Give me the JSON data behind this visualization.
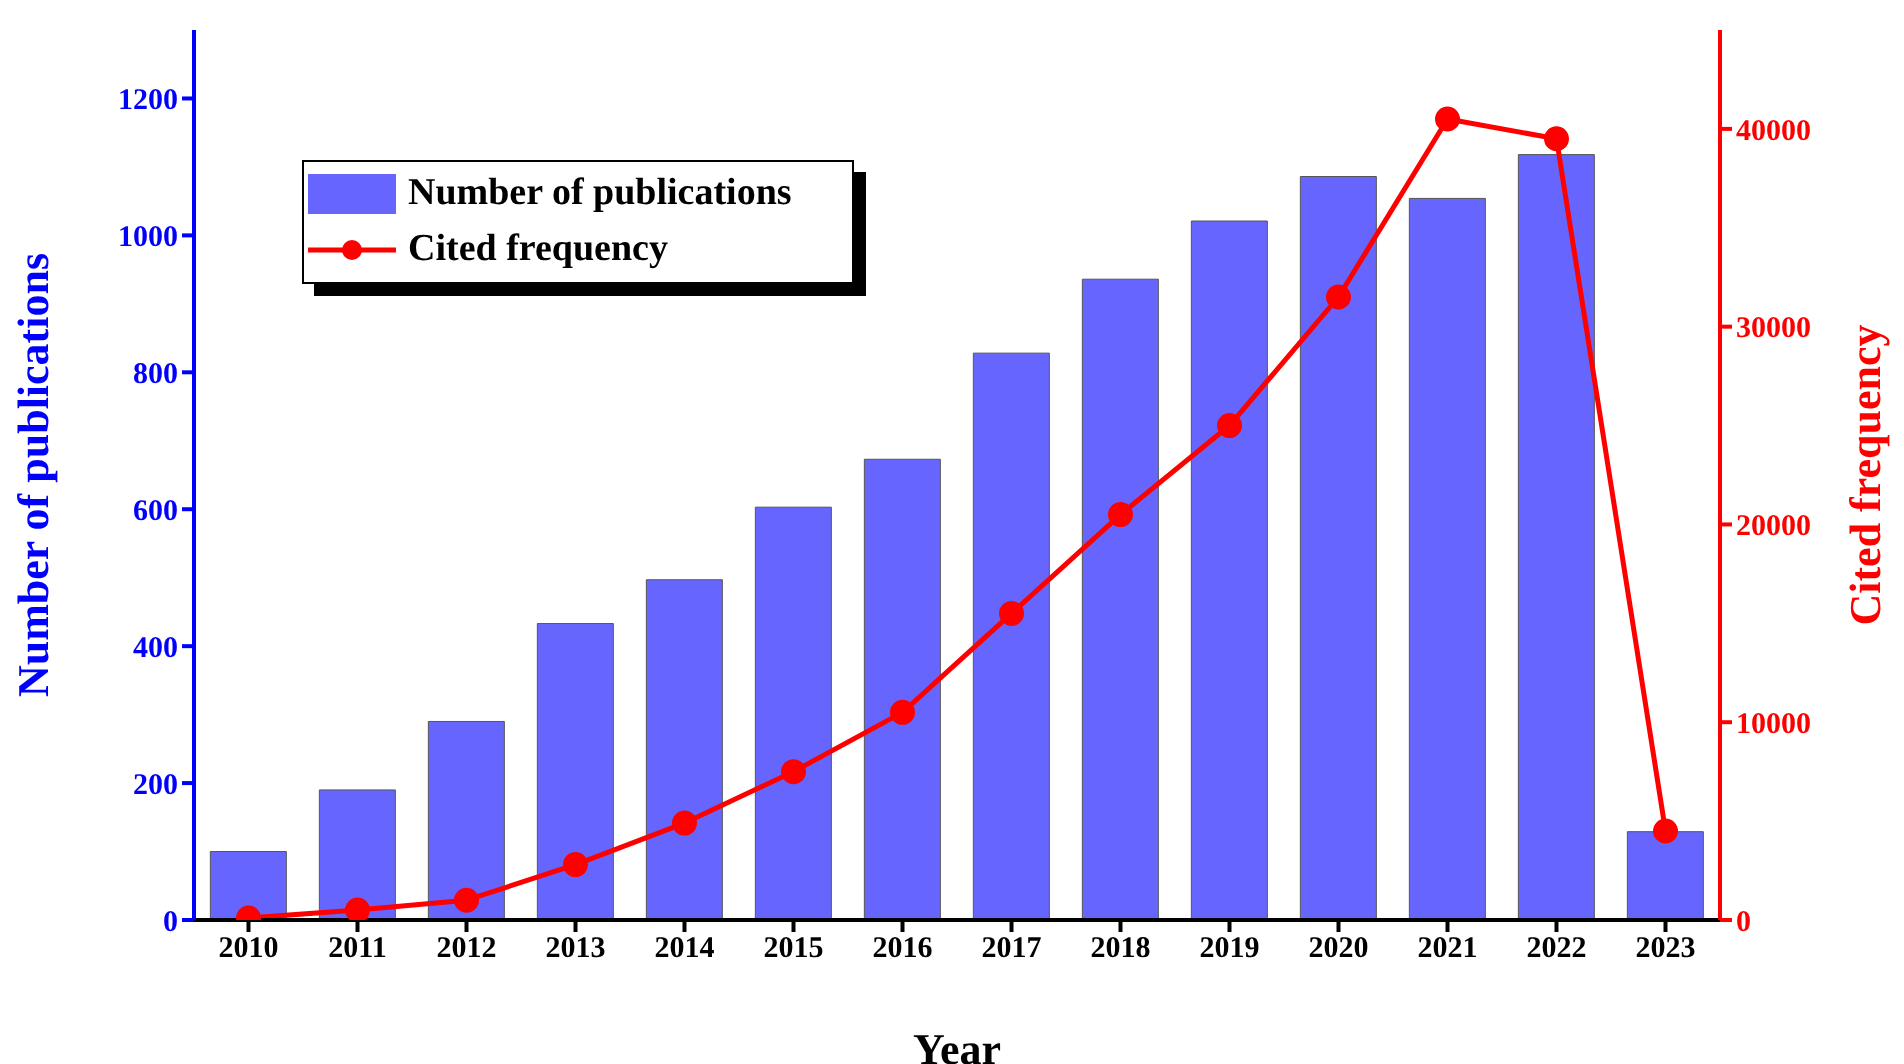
{
  "chart_data": {
    "type": "bar",
    "categories": [
      "2010",
      "2011",
      "2012",
      "2013",
      "2014",
      "2015",
      "2016",
      "2017",
      "2018",
      "2019",
      "2020",
      "2021",
      "2022",
      "2023"
    ],
    "xlabel": "Year",
    "ylabel": "Number of publications",
    "y2label": "Cited frequency",
    "ylim": [
      0,
      1300
    ],
    "yticks": [
      0,
      200,
      400,
      600,
      800,
      1000,
      1200
    ],
    "y2lim": [
      0,
      45000
    ],
    "y2ticks": [
      0,
      10000,
      20000,
      30000,
      40000
    ],
    "series": [
      {
        "name": "Number of publications",
        "color": "#6666ff",
        "values": [
          100,
          190,
          290,
          433,
          497,
          603,
          673,
          828,
          936,
          1021,
          1086,
          1054,
          1118,
          129
        ]
      },
      {
        "name": "Cited frequency",
        "type": "line",
        "axis": "y2",
        "color": "#ff0000",
        "values": [
          100,
          500,
          1000,
          2800,
          4900,
          7500,
          10500,
          15500,
          20500,
          25000,
          31500,
          40500,
          39500,
          4500
        ]
      }
    ],
    "legend": "top left",
    "grid": false,
    "marker": "circle",
    "line_style": "solid"
  }
}
